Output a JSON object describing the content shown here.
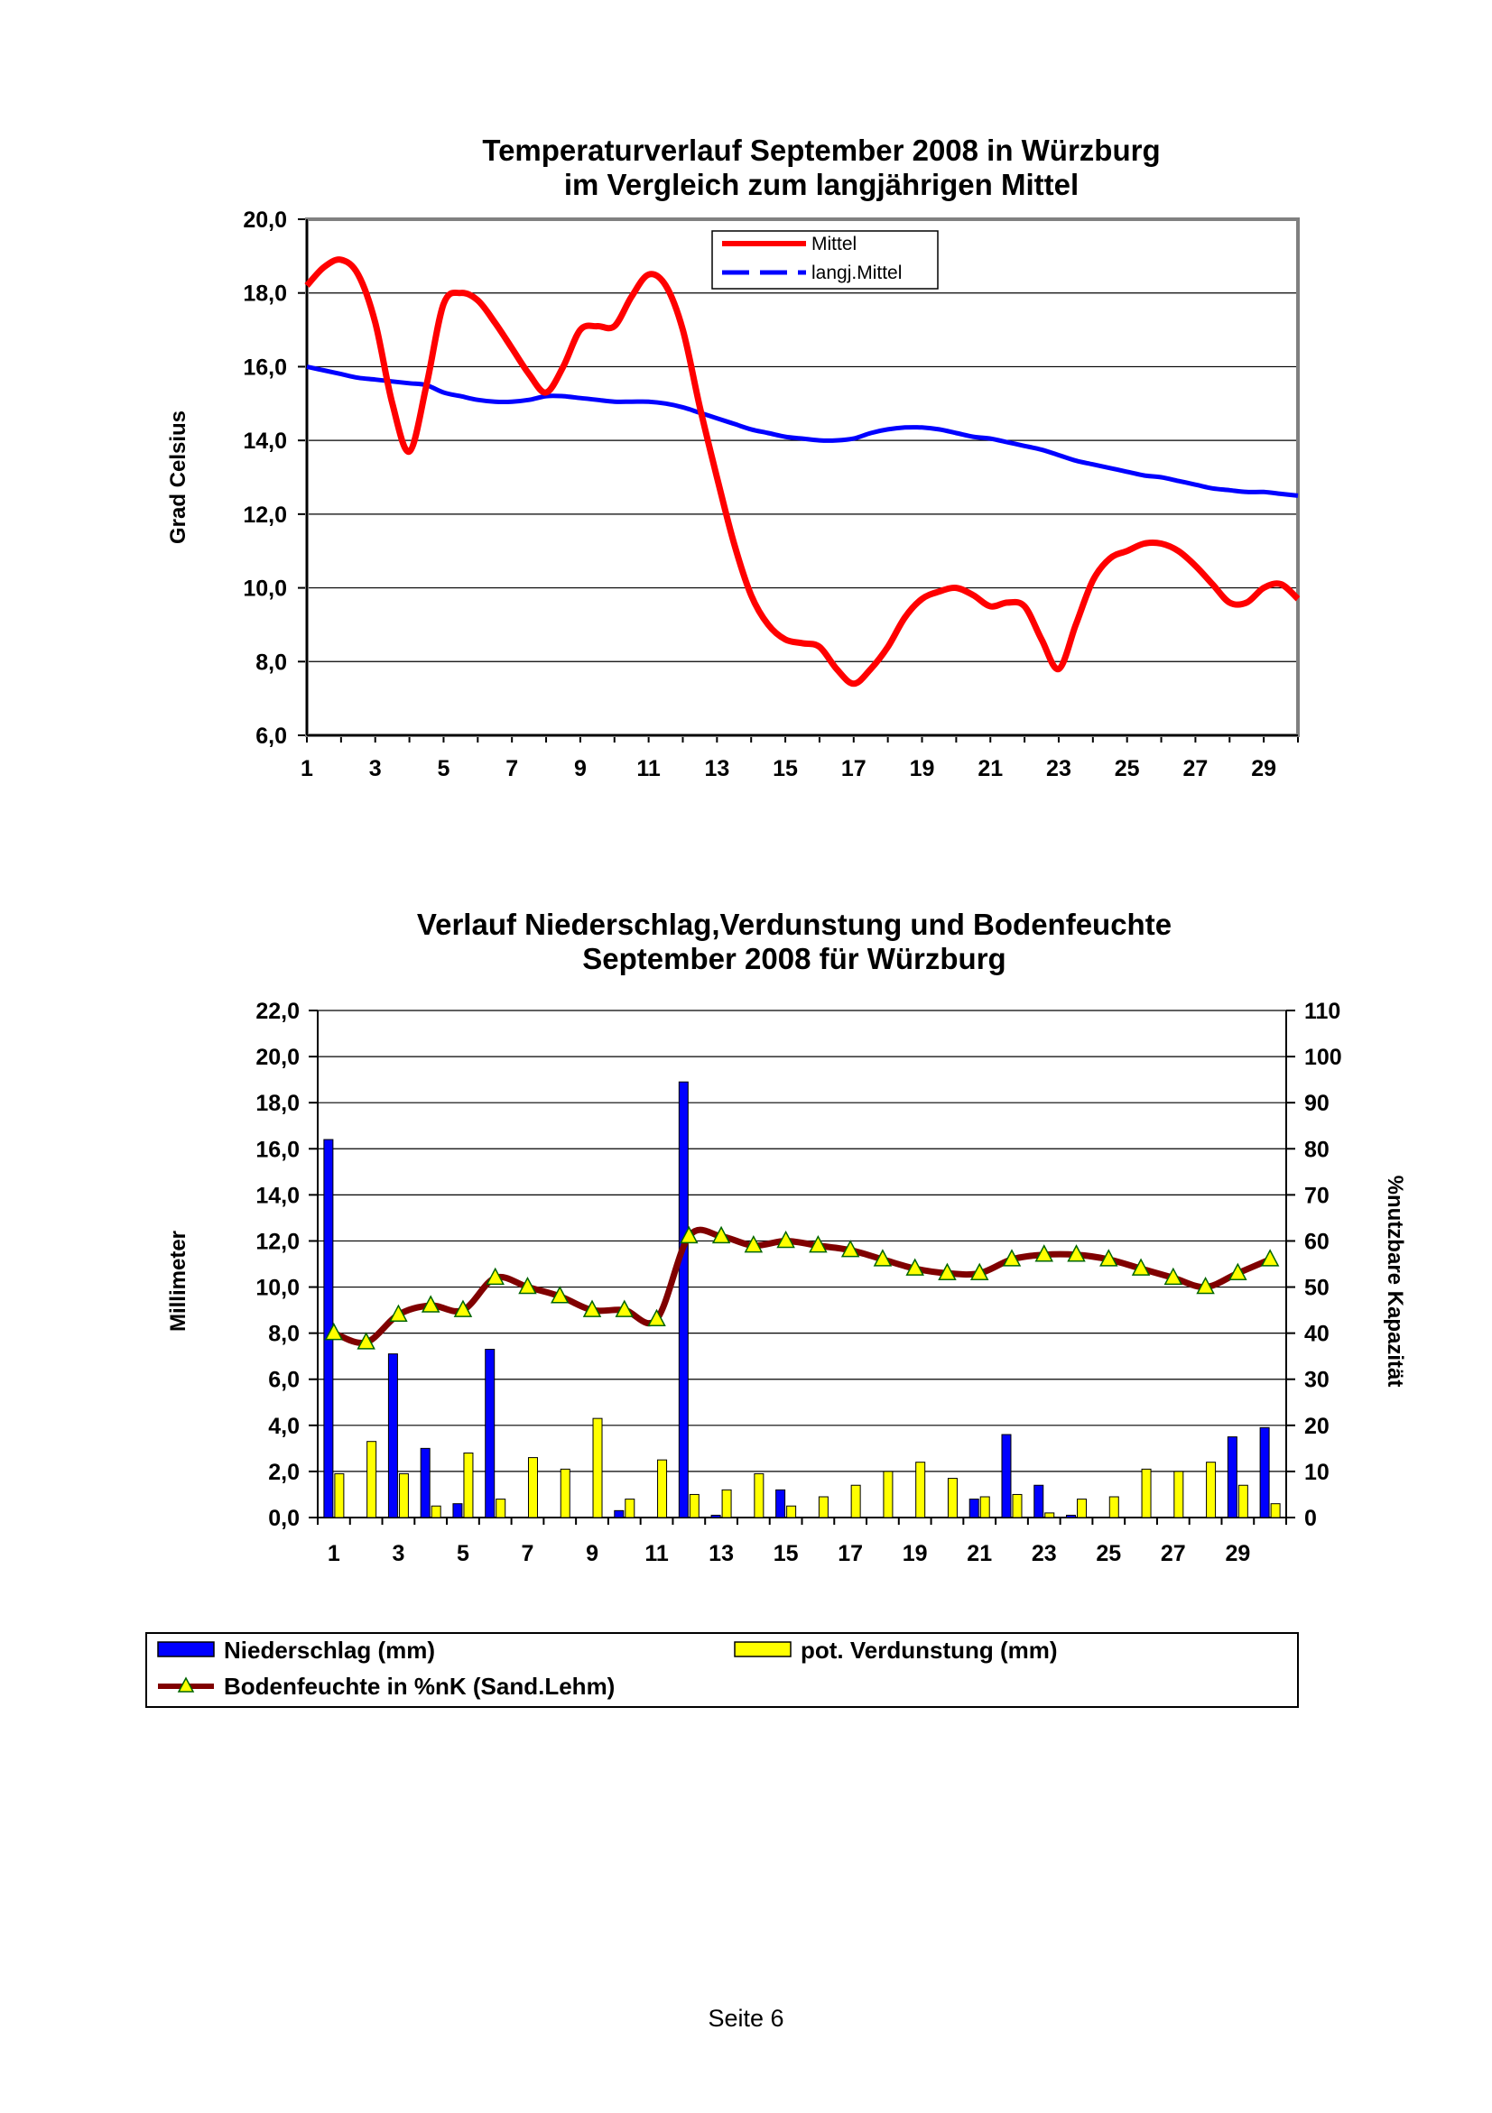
{
  "footer": "Seite 6",
  "chart_data": [
    {
      "type": "line",
      "title": [
        "Temperaturverlauf September 2008 in Würzburg",
        "im Vergleich zum langjährigen Mittel"
      ],
      "ylabel": "Grad Celsius",
      "xlabel": "",
      "ylim": [
        6,
        20
      ],
      "yticks": [
        "6,0",
        "8,0",
        "10,0",
        "12,0",
        "14,0",
        "16,0",
        "18,0",
        "20,0"
      ],
      "xticks": [
        "1",
        "3",
        "5",
        "7",
        "9",
        "11",
        "13",
        "15",
        "17",
        "19",
        "21",
        "23",
        "25",
        "27",
        "29"
      ],
      "x": [
        1,
        1.5,
        2,
        2.5,
        3,
        3.5,
        4,
        4.5,
        5,
        5.5,
        6,
        6.5,
        7,
        7.5,
        8,
        8.5,
        9,
        9.5,
        10,
        10.5,
        11,
        11.5,
        12,
        12.5,
        13,
        13.5,
        14,
        14.5,
        15,
        15.5,
        16,
        16.5,
        17,
        17.5,
        18,
        18.5,
        19,
        19.5,
        20,
        20.5,
        21,
        21.5,
        22,
        22.5,
        23,
        23.5,
        24,
        24.5,
        25,
        25.5,
        26,
        26.5,
        27,
        27.5,
        28,
        28.5,
        29,
        29.5,
        30
      ],
      "series": [
        {
          "name": "Mittel",
          "color": "#ff0000",
          "values": [
            18.2,
            18.7,
            18.9,
            18.5,
            17.2,
            15.0,
            13.7,
            15.5,
            17.7,
            18.0,
            17.8,
            17.2,
            16.5,
            15.8,
            15.3,
            16.0,
            17.0,
            17.1,
            17.1,
            17.9,
            18.5,
            18.2,
            17.0,
            14.9,
            13.0,
            11.2,
            9.8,
            9.0,
            8.6,
            8.5,
            8.4,
            7.8,
            7.4,
            7.8,
            8.4,
            9.2,
            9.7,
            9.9,
            10.0,
            9.8,
            9.5,
            9.6,
            9.5,
            8.6,
            7.8,
            9.0,
            10.2,
            10.8,
            11.0,
            11.2,
            11.2,
            11.0,
            10.6,
            10.1,
            9.6,
            9.6,
            10.0,
            10.1,
            9.7
          ]
        },
        {
          "name": "langj.Mittel",
          "color": "#0000ff",
          "values": [
            16.0,
            15.9,
            15.8,
            15.7,
            15.65,
            15.6,
            15.55,
            15.5,
            15.3,
            15.2,
            15.1,
            15.05,
            15.05,
            15.1,
            15.2,
            15.2,
            15.15,
            15.1,
            15.05,
            15.05,
            15.05,
            15.0,
            14.9,
            14.75,
            14.6,
            14.45,
            14.3,
            14.2,
            14.1,
            14.05,
            14.0,
            14.0,
            14.05,
            14.2,
            14.3,
            14.35,
            14.35,
            14.3,
            14.2,
            14.1,
            14.05,
            13.95,
            13.85,
            13.75,
            13.6,
            13.45,
            13.35,
            13.25,
            13.15,
            13.05,
            13.0,
            12.9,
            12.8,
            12.7,
            12.65,
            12.6,
            12.6,
            12.55,
            12.5
          ]
        }
      ],
      "legend": [
        "Mittel",
        "langj.Mittel"
      ]
    },
    {
      "type": "bar",
      "title": [
        "Verlauf Niederschlag,Verdunstung und Bodenfeuchte",
        "September 2008 für Würzburg"
      ],
      "ylabel": "Millimeter",
      "y2label": "%nutzbare Kapazität",
      "ylim": [
        0,
        22
      ],
      "y2lim": [
        0,
        110
      ],
      "yticks": [
        "0,0",
        "2,0",
        "4,0",
        "6,0",
        "8,0",
        "10,0",
        "12,0",
        "14,0",
        "16,0",
        "18,0",
        "20,0",
        "22,0"
      ],
      "y2ticks": [
        "0",
        "10",
        "20",
        "30",
        "40",
        "50",
        "60",
        "70",
        "80",
        "90",
        "100",
        "110"
      ],
      "xticks": [
        "1",
        "3",
        "5",
        "7",
        "9",
        "11",
        "13",
        "15",
        "17",
        "19",
        "21",
        "23",
        "25",
        "27",
        "29"
      ],
      "categories": [
        1,
        2,
        3,
        4,
        5,
        6,
        7,
        8,
        9,
        10,
        11,
        12,
        13,
        14,
        15,
        16,
        17,
        18,
        19,
        20,
        21,
        22,
        23,
        24,
        25,
        26,
        27,
        28,
        29,
        30
      ],
      "series": [
        {
          "name": "Niederschlag (mm)",
          "color": "#0000ff",
          "axis": "left",
          "values": [
            16.4,
            0,
            7.1,
            3.0,
            0.6,
            7.3,
            0,
            0,
            0,
            0.3,
            0,
            18.9,
            0.1,
            0,
            1.2,
            0,
            0,
            0,
            0,
            0,
            0.8,
            3.6,
            1.4,
            0.1,
            0,
            0,
            0,
            0,
            3.5,
            3.9
          ]
        },
        {
          "name": "pot. Verdunstung (mm)",
          "color": "#ffff00",
          "axis": "left",
          "values": [
            1.9,
            3.3,
            1.9,
            0.5,
            2.8,
            0.8,
            2.6,
            2.1,
            4.3,
            0.8,
            2.5,
            1.0,
            1.2,
            1.9,
            0.5,
            0.9,
            1.4,
            2.0,
            2.4,
            1.7,
            0.9,
            1.0,
            0.2,
            0.8,
            0.9,
            2.1,
            2.0,
            2.4,
            1.4,
            0.6
          ]
        },
        {
          "name": "Bodenfeuchte in %nK (Sand.Lehm)",
          "color": "#800000",
          "marker_color": "#ffff00",
          "axis": "right",
          "type": "line",
          "values": [
            40,
            38,
            44,
            46,
            45,
            52,
            50,
            48,
            45,
            45,
            43,
            61,
            61,
            59,
            60,
            59,
            58,
            56,
            54,
            53,
            53,
            56,
            57,
            57,
            56,
            54,
            52,
            50,
            53,
            56
          ]
        }
      ],
      "legend": [
        "Niederschlag (mm)",
        "pot. Verdunstung (mm)",
        "Bodenfeuchte in %nK (Sand.Lehm)"
      ]
    }
  ]
}
